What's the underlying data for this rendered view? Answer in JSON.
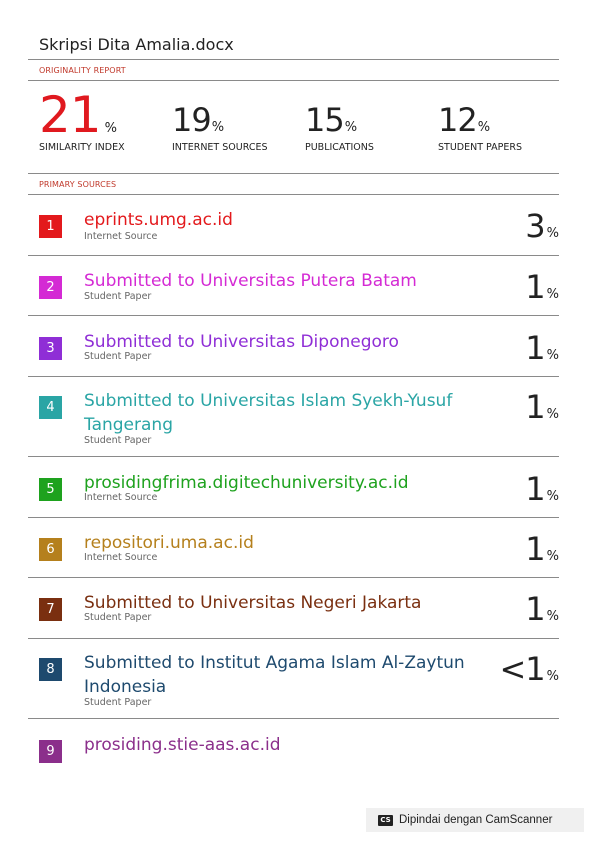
{
  "document": {
    "title": "Skripsi Dita Amalia.docx"
  },
  "report": {
    "originality_label": "ORIGINALITY REPORT",
    "primary_sources_label": "PRIMARY SOURCES",
    "stats": [
      {
        "value": "21",
        "unit": "%",
        "label": "SIMILARITY INDEX"
      },
      {
        "value": "19",
        "unit": "%",
        "label": "INTERNET SOURCES"
      },
      {
        "value": "15",
        "unit": "%",
        "label": "PUBLICATIONS"
      },
      {
        "value": "12",
        "unit": "%",
        "label": "STUDENT PAPERS"
      }
    ]
  },
  "sources": [
    {
      "rank": "1",
      "title": "eprints.umg.ac.id",
      "type": "Internet Source",
      "pct": "3",
      "unit": "%",
      "color": "#e3191c"
    },
    {
      "rank": "2",
      "title": "Submitted to Universitas Putera Batam",
      "type": "Student Paper",
      "pct": "1",
      "unit": "%",
      "color": "#d42ad4"
    },
    {
      "rank": "3",
      "title": "Submitted to Universitas Diponegoro",
      "type": "Student Paper",
      "pct": "1",
      "unit": "%",
      "color": "#8f2ed6"
    },
    {
      "rank": "4",
      "title": "Submitted to Universitas Islam Syekh-Yusuf Tangerang",
      "type": "Student Paper",
      "pct": "1",
      "unit": "%",
      "color": "#2aa5a5"
    },
    {
      "rank": "5",
      "title": "prosidingfrima.digitechuniversity.ac.id",
      "type": "Internet Source",
      "pct": "1",
      "unit": "%",
      "color": "#1ea21e"
    },
    {
      "rank": "6",
      "title": "repositori.uma.ac.id",
      "type": "Internet Source",
      "pct": "1",
      "unit": "%",
      "color": "#b5801d"
    },
    {
      "rank": "7",
      "title": "Submitted to Universitas Negeri Jakarta",
      "type": "Student Paper",
      "pct": "1",
      "unit": "%",
      "color": "#7a2f10"
    },
    {
      "rank": "8",
      "title": "Submitted to Institut Agama Islam Al-Zaytun Indonesia",
      "type": "Student Paper",
      "pct": "<1",
      "unit": "%",
      "color": "#1e4a6e"
    },
    {
      "rank": "9",
      "title": "prosiding.stie-aas.ac.id",
      "type": "",
      "pct": "",
      "unit": "",
      "color": "#8b2f8b"
    }
  ],
  "footer": {
    "logo_text": "CS",
    "text": "Dipindai dengan CamScanner"
  }
}
